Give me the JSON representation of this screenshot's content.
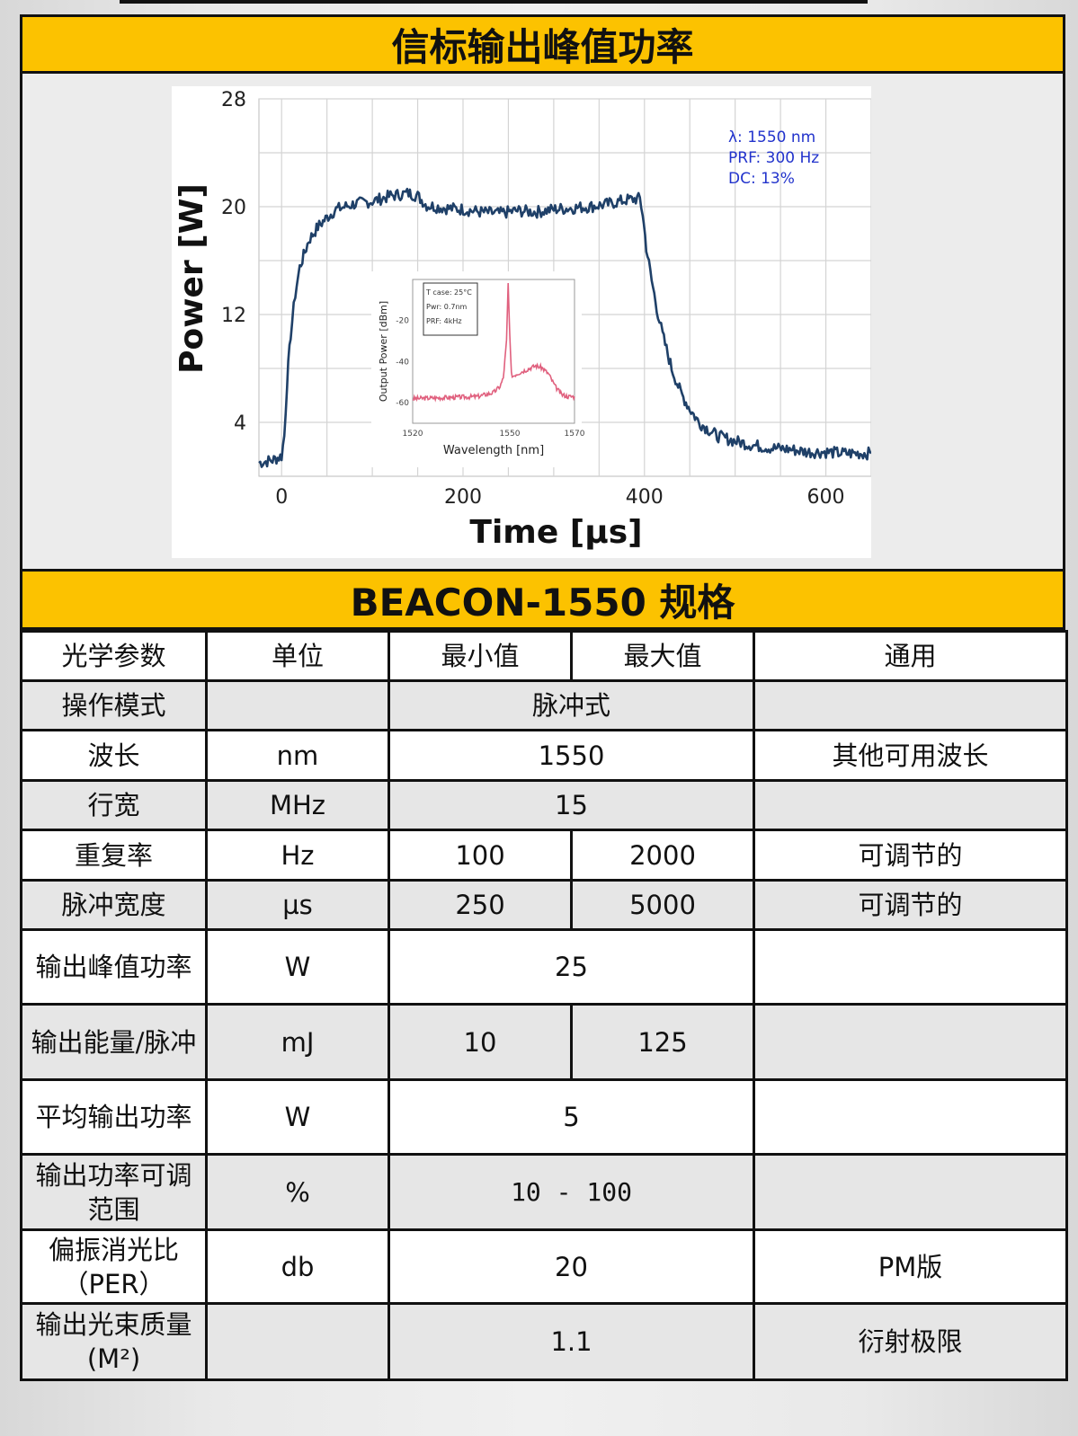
{
  "header_title": "信标输出峰值功率",
  "spec_title": "BEACON-1550 规格",
  "chart_data": {
    "type": "line",
    "title": "",
    "xlabel": "Time [µs]",
    "ylabel": "Power [W]",
    "xlim": [
      -25,
      650
    ],
    "ylim": [
      0,
      28
    ],
    "xticks": [
      0,
      200,
      400,
      600
    ],
    "yticks": [
      4,
      12,
      20,
      28
    ],
    "grid": true,
    "color": "#1f4068",
    "annotation_lines": [
      "λ: 1550 nm",
      "PRF: 300 Hz",
      "DC: 13%"
    ],
    "annotation_color": "#2233cc",
    "series": [
      {
        "x": [
          -25,
          -10,
          0,
          3,
          6,
          10,
          15,
          20,
          30,
          40,
          50,
          60,
          80,
          100,
          120,
          140,
          150,
          160,
          180,
          200,
          220,
          240,
          260,
          280,
          300,
          320,
          340,
          360,
          380,
          395,
          398,
          402,
          408,
          415,
          420,
          430,
          440,
          450,
          460,
          470,
          480,
          500,
          520,
          540,
          560,
          580,
          600,
          620,
          650
        ],
        "y": [
          1.0,
          1.2,
          1.5,
          3.0,
          7.0,
          10.5,
          13.5,
          15.5,
          17.5,
          18.5,
          19.2,
          19.8,
          20.2,
          20.4,
          20.8,
          21.0,
          20.8,
          20.1,
          19.9,
          19.8,
          19.6,
          19.5,
          19.7,
          19.6,
          19.8,
          19.9,
          20.0,
          20.2,
          20.5,
          20.6,
          19.5,
          17.0,
          14.5,
          12.0,
          10.5,
          8.0,
          6.2,
          5.0,
          4.0,
          3.5,
          3.0,
          2.6,
          2.3,
          2.1,
          2.0,
          1.8,
          1.8,
          1.7,
          1.7
        ]
      }
    ],
    "inset": {
      "type": "line",
      "xlabel": "Wavelength [nm]",
      "ylabel": "Output Power [dBm]",
      "xlim": [
        1520,
        1570
      ],
      "ylim": [
        -70,
        0
      ],
      "xticks": [
        1520,
        1550,
        1570
      ],
      "yticks": [
        -20,
        -40,
        -60
      ],
      "color": "#e0607e",
      "legend_lines": [
        "T case: 25°C",
        "Pwr: 0.7nm",
        "PRF: 4kHz"
      ],
      "series": [
        {
          "x": [
            1520,
            1530,
            1540,
            1545,
            1547,
            1548,
            1549,
            1549.5,
            1550,
            1550.5,
            1551,
            1552,
            1555,
            1558,
            1560,
            1562,
            1564,
            1566,
            1568,
            1570
          ],
          "y": [
            -58,
            -57.5,
            -57,
            -55,
            -52,
            -48,
            -30,
            -2,
            -28,
            -46,
            -47,
            -46,
            -44,
            -42,
            -43,
            -46,
            -52,
            -56,
            -57,
            -57
          ]
        }
      ]
    }
  },
  "table": {
    "header": {
      "param": "光学参数",
      "unit": "单位",
      "min": "最小值",
      "max": "最大值",
      "general": "通用"
    },
    "rows": [
      {
        "param": "操作模式",
        "unit": "",
        "value": "脉冲式",
        "general": ""
      },
      {
        "param": "波长",
        "unit": "nm",
        "value": "1550",
        "general": "其他可用波长"
      },
      {
        "param": "行宽",
        "unit": "MHz",
        "value": "15",
        "general": ""
      },
      {
        "param": "重复率",
        "unit": "Hz",
        "min": "100",
        "max": "2000",
        "general": "可调节的"
      },
      {
        "param": "脉冲宽度",
        "unit": "µs",
        "min": "250",
        "max": "5000",
        "general": "可调节的"
      },
      {
        "param": "输出峰值功率",
        "unit": "W",
        "value": "25",
        "general": ""
      },
      {
        "param": "输出能量/脉冲",
        "unit": "mJ",
        "min": "10",
        "max": "125",
        "general": ""
      },
      {
        "param": "平均输出功率",
        "unit": "W",
        "value": "5",
        "general": ""
      },
      {
        "param": "输出功率可调范围",
        "unit": "%",
        "value": "10 - 100",
        "general": ""
      },
      {
        "param": "偏振消光比（PER）",
        "unit": "db",
        "value": "20",
        "general": "PM版"
      },
      {
        "param": "输出光束质量 (M²)",
        "unit": "",
        "value": "1.1",
        "general": "衍射极限"
      }
    ]
  }
}
